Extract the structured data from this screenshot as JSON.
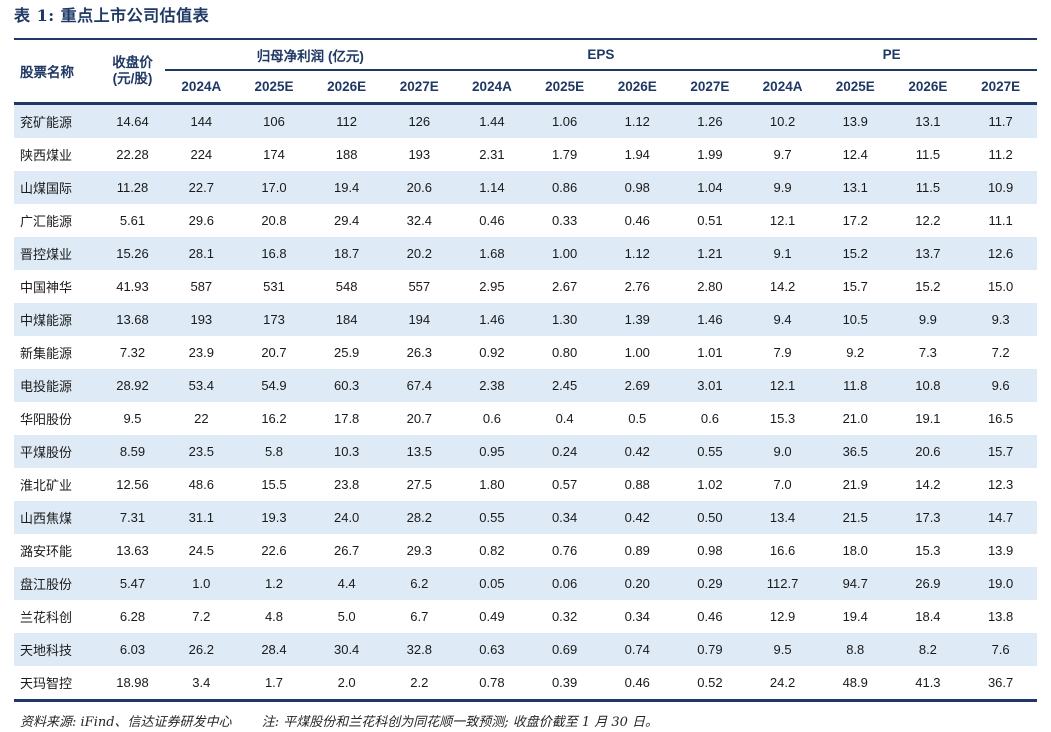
{
  "title": "表 1: 重点上市公司估值表",
  "colors": {
    "accent_navy": "#1F3864",
    "row_band_blue": "#DEEAF6",
    "body_text": "#1a1a1a",
    "background": "#ffffff"
  },
  "table": {
    "col1_header": "股票名称",
    "col2_header_line1": "收盘价",
    "col2_header_line2": "(元/股)",
    "groups": [
      {
        "label": "归母净利润 (亿元)"
      },
      {
        "label": "EPS"
      },
      {
        "label": "PE"
      }
    ],
    "year_headers": [
      "2024A",
      "2025E",
      "2026E",
      "2027E"
    ],
    "rows": [
      {
        "name": "兖矿能源",
        "price": "14.64",
        "values": [
          "144",
          "106",
          "112",
          "126",
          "1.44",
          "1.06",
          "1.12",
          "1.26",
          "10.2",
          "13.9",
          "13.1",
          "11.7"
        ]
      },
      {
        "name": "陕西煤业",
        "price": "22.28",
        "values": [
          "224",
          "174",
          "188",
          "193",
          "2.31",
          "1.79",
          "1.94",
          "1.99",
          "9.7",
          "12.4",
          "11.5",
          "11.2"
        ]
      },
      {
        "name": "山煤国际",
        "price": "11.28",
        "values": [
          "22.7",
          "17.0",
          "19.4",
          "20.6",
          "1.14",
          "0.86",
          "0.98",
          "1.04",
          "9.9",
          "13.1",
          "11.5",
          "10.9"
        ]
      },
      {
        "name": "广汇能源",
        "price": "5.61",
        "values": [
          "29.6",
          "20.8",
          "29.4",
          "32.4",
          "0.46",
          "0.33",
          "0.46",
          "0.51",
          "12.1",
          "17.2",
          "12.2",
          "11.1"
        ]
      },
      {
        "name": "晋控煤业",
        "price": "15.26",
        "values": [
          "28.1",
          "16.8",
          "18.7",
          "20.2",
          "1.68",
          "1.00",
          "1.12",
          "1.21",
          "9.1",
          "15.2",
          "13.7",
          "12.6"
        ]
      },
      {
        "name": "中国神华",
        "price": "41.93",
        "values": [
          "587",
          "531",
          "548",
          "557",
          "2.95",
          "2.67",
          "2.76",
          "2.80",
          "14.2",
          "15.7",
          "15.2",
          "15.0"
        ]
      },
      {
        "name": "中煤能源",
        "price": "13.68",
        "values": [
          "193",
          "173",
          "184",
          "194",
          "1.46",
          "1.30",
          "1.39",
          "1.46",
          "9.4",
          "10.5",
          "9.9",
          "9.3"
        ]
      },
      {
        "name": "新集能源",
        "price": "7.32",
        "values": [
          "23.9",
          "20.7",
          "25.9",
          "26.3",
          "0.92",
          "0.80",
          "1.00",
          "1.01",
          "7.9",
          "9.2",
          "7.3",
          "7.2"
        ]
      },
      {
        "name": "电投能源",
        "price": "28.92",
        "values": [
          "53.4",
          "54.9",
          "60.3",
          "67.4",
          "2.38",
          "2.45",
          "2.69",
          "3.01",
          "12.1",
          "11.8",
          "10.8",
          "9.6"
        ]
      },
      {
        "name": "华阳股份",
        "price": "9.5",
        "values": [
          "22",
          "16.2",
          "17.8",
          "20.7",
          "0.6",
          "0.4",
          "0.5",
          "0.6",
          "15.3",
          "21.0",
          "19.1",
          "16.5"
        ]
      },
      {
        "name": "平煤股份",
        "price": "8.59",
        "values": [
          "23.5",
          "5.8",
          "10.3",
          "13.5",
          "0.95",
          "0.24",
          "0.42",
          "0.55",
          "9.0",
          "36.5",
          "20.6",
          "15.7"
        ]
      },
      {
        "name": "淮北矿业",
        "price": "12.56",
        "values": [
          "48.6",
          "15.5",
          "23.8",
          "27.5",
          "1.80",
          "0.57",
          "0.88",
          "1.02",
          "7.0",
          "21.9",
          "14.2",
          "12.3"
        ]
      },
      {
        "name": "山西焦煤",
        "price": "7.31",
        "values": [
          "31.1",
          "19.3",
          "24.0",
          "28.2",
          "0.55",
          "0.34",
          "0.42",
          "0.50",
          "13.4",
          "21.5",
          "17.3",
          "14.7"
        ]
      },
      {
        "name": "潞安环能",
        "price": "13.63",
        "values": [
          "24.5",
          "22.6",
          "26.7",
          "29.3",
          "0.82",
          "0.76",
          "0.89",
          "0.98",
          "16.6",
          "18.0",
          "15.3",
          "13.9"
        ]
      },
      {
        "name": "盘江股份",
        "price": "5.47",
        "values": [
          "1.0",
          "1.2",
          "4.4",
          "6.2",
          "0.05",
          "0.06",
          "0.20",
          "0.29",
          "112.7",
          "94.7",
          "26.9",
          "19.0"
        ]
      },
      {
        "name": "兰花科创",
        "price": "6.28",
        "values": [
          "7.2",
          "4.8",
          "5.0",
          "6.7",
          "0.49",
          "0.32",
          "0.34",
          "0.46",
          "12.9",
          "19.4",
          "18.4",
          "13.8"
        ]
      },
      {
        "name": "天地科技",
        "price": "6.03",
        "values": [
          "26.2",
          "28.4",
          "30.4",
          "32.8",
          "0.63",
          "0.69",
          "0.74",
          "0.79",
          "9.5",
          "8.8",
          "8.2",
          "7.6"
        ]
      },
      {
        "name": "天玛智控",
        "price": "18.98",
        "values": [
          "3.4",
          "1.7",
          "2.0",
          "2.2",
          "0.78",
          "0.39",
          "0.46",
          "0.52",
          "24.2",
          "48.9",
          "41.3",
          "36.7"
        ]
      }
    ]
  },
  "footer": {
    "source": "资料来源: iFind、信达证券研发中心",
    "note": "注: 平煤股份和兰花科创为同花顺一致预测; 收盘价截至 1 月 30 日。"
  }
}
